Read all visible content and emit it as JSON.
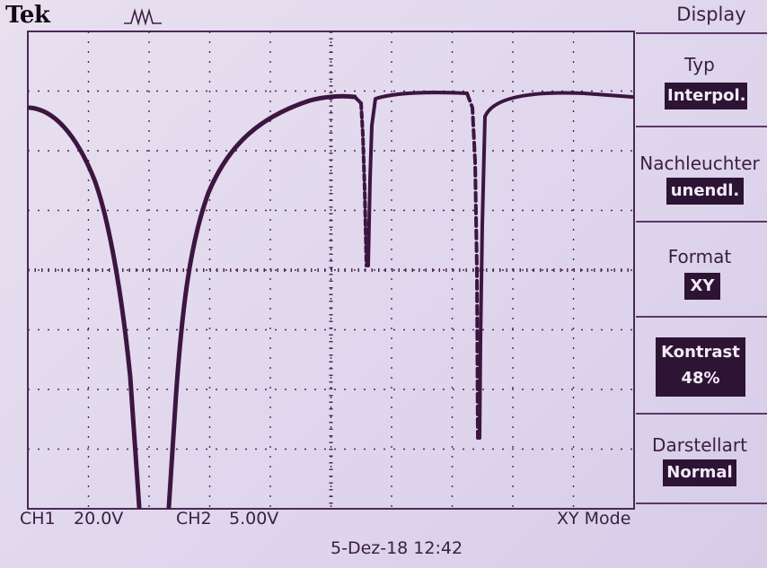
{
  "brand": "Tek",
  "menu": {
    "title": "Display",
    "typ_label": "Typ",
    "typ_value": "Interpol.",
    "nach_label": "Nachleuchter",
    "nach_value": "unendl.",
    "format_label": "Format",
    "format_value": "XY",
    "kontrast_label": "Kontrast",
    "kontrast_value": "48%",
    "darst_label": "Darstellart",
    "darst_value": "Normal"
  },
  "status": {
    "ch1_name": "CH1",
    "ch1_scale": "20.0V",
    "ch2_name": "CH2",
    "ch2_scale": "5.00V",
    "mode": "XY Mode"
  },
  "datetime": "5-Dez-18 12:42",
  "colors": {
    "trace": "#3c1640",
    "grid": "#4a2a55",
    "menu_bg": "#2d1434"
  },
  "icons": {
    "trigger": "trigger-pulse-icon"
  }
}
